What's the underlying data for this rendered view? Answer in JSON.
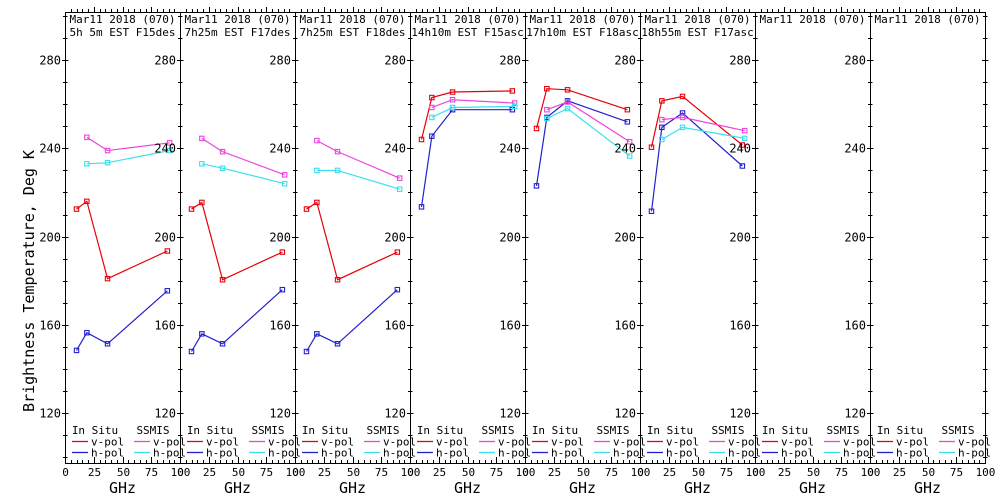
{
  "chart_data": {
    "type": "line",
    "ylabel": "Brightness Temperature, Deg K",
    "xlabel": "GHz",
    "xlim": [
      0,
      100
    ],
    "ylim": [
      120,
      280
    ],
    "x_major_ticks": [
      0,
      25,
      50,
      75,
      100
    ],
    "x_minor_step": 5,
    "y_major_ticks": [
      120,
      160,
      200,
      240,
      280
    ],
    "y_minor_step": 10,
    "grid": "off",
    "legend": {
      "col1_header": "In Situ",
      "col2_header": "SSMIS",
      "vpol_label": "v-pol",
      "hpol_label": "h-pol"
    },
    "colors": {
      "insitu_v": "#e8000b",
      "insitu_h": "#2222cc",
      "ssmis_v": "#ee44dd",
      "ssmis_h": "#3ae0ee"
    },
    "insitu_x": [
      10,
      19,
      37,
      89
    ],
    "ssmis_x": [
      19,
      37,
      91
    ],
    "panels": [
      {
        "title": "Mar11 2018 (070)",
        "subtitle": "5h 5m EST F15des",
        "series": [
          {
            "name": "insitu_v",
            "values": [
              212.5,
              216,
              181,
              193.5
            ]
          },
          {
            "name": "insitu_h",
            "values": [
              148.5,
              156.5,
              151.5,
              175.5
            ]
          },
          {
            "name": "ssmis_v",
            "values": [
              245,
              239,
              242.5
            ]
          },
          {
            "name": "ssmis_h",
            "values": [
              233,
              233.5,
              239
            ]
          }
        ]
      },
      {
        "title": "Mar11 2018 (070)",
        "subtitle": "7h25m EST F17des",
        "series": [
          {
            "name": "insitu_v",
            "values": [
              212.5,
              215.5,
              180.5,
              193
            ]
          },
          {
            "name": "insitu_h",
            "values": [
              148,
              156,
              151.5,
              176
            ]
          },
          {
            "name": "ssmis_v",
            "values": [
              244.5,
              238.5,
              228
            ]
          },
          {
            "name": "ssmis_h",
            "values": [
              233,
              231,
              224
            ]
          }
        ]
      },
      {
        "title": "Mar11 2018 (070)",
        "subtitle": "7h25m EST F18des",
        "series": [
          {
            "name": "insitu_v",
            "values": [
              212.5,
              215.5,
              180.5,
              193
            ]
          },
          {
            "name": "insitu_h",
            "values": [
              148,
              156,
              151.5,
              176
            ]
          },
          {
            "name": "ssmis_v",
            "values": [
              243.5,
              238.5,
              226.5
            ]
          },
          {
            "name": "ssmis_h",
            "values": [
              230,
              230,
              221.5
            ]
          }
        ]
      },
      {
        "title": "Mar11 2018 (070)",
        "subtitle": "14h10m EST F15asc",
        "series": [
          {
            "name": "insitu_v",
            "values": [
              244,
              263,
              265.5,
              266
            ]
          },
          {
            "name": "insitu_h",
            "values": [
              213.5,
              245.5,
              257.5,
              257.5
            ]
          },
          {
            "name": "ssmis_v",
            "values": [
              258.5,
              262,
              260.5
            ]
          },
          {
            "name": "ssmis_h",
            "values": [
              254,
              258.5,
              259
            ]
          }
        ]
      },
      {
        "title": "Mar11 2018 (070)",
        "subtitle": "17h10m EST F18asc",
        "series": [
          {
            "name": "insitu_v",
            "values": [
              249,
              267,
              266.5,
              257.5
            ]
          },
          {
            "name": "insitu_h",
            "values": [
              223,
              254,
              261.5,
              252
            ]
          },
          {
            "name": "ssmis_v",
            "values": [
              257.5,
              261,
              243
            ]
          },
          {
            "name": "ssmis_h",
            "values": [
              253.5,
              258,
              236.5
            ]
          }
        ]
      },
      {
        "title": "Mar11 2018 (070)",
        "subtitle": "18h55m EST F17asc",
        "series": [
          {
            "name": "insitu_v",
            "values": [
              240.5,
              261.5,
              263.5,
              241.5
            ]
          },
          {
            "name": "insitu_h",
            "values": [
              211.5,
              249.5,
              256,
              232
            ]
          },
          {
            "name": "ssmis_v",
            "values": [
              253,
              254,
              248
            ]
          },
          {
            "name": "ssmis_h",
            "values": [
              244,
              249.5,
              244.5
            ]
          }
        ]
      },
      {
        "title": "Mar11 2018 (070)",
        "subtitle": "",
        "series": []
      },
      {
        "title": "Mar11 2018 (070)",
        "subtitle": "",
        "series": []
      }
    ]
  }
}
